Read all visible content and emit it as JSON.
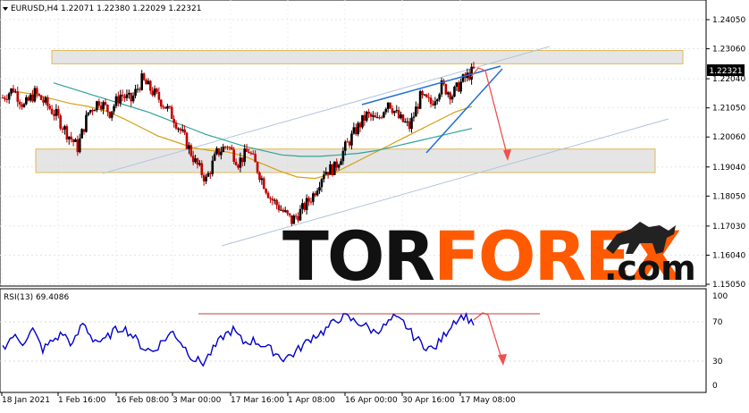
{
  "header": {
    "symbol_label": "EURUSD,H4",
    "ohlc": "1.22071 1.22380 1.22029 1.22321"
  },
  "rsi_header": {
    "label": "RSI(13) 69.4086"
  },
  "watermark": {
    "part1": "TOR",
    "part2": "FOREX",
    "part3": ".com"
  },
  "colors": {
    "background": "#ffffff",
    "candle_up": "#000000",
    "candle_down": "#c00000",
    "ma_fast": "#d4a017",
    "ma_slow": "#2ea39b",
    "channel": "#b0c4de",
    "wedge": "#1e6fd9",
    "zone_fill": "#dcdcdc",
    "zone_border": "#e0b85a",
    "forecast_arrow": "#f05050",
    "rsi_line": "#0000cc",
    "rsi_level_line": "#c04040",
    "watermark_dark": "#111111",
    "watermark_accent": "#ff5a00"
  },
  "chart_data": [
    {
      "type": "candlestick",
      "title": "EURUSD,H4",
      "y_ticks": [
        "1.24050",
        "1.23060",
        "1.22040",
        "1.21050",
        "1.20060",
        "1.19040",
        "1.18050",
        "1.17030",
        "1.16040",
        "1.15050"
      ],
      "current_price_label": "1.22321",
      "ylim": [
        1.148,
        1.246
      ],
      "x_ticks": [
        "18 Jan 2021",
        "1 Feb 16:00",
        "16 Feb 08:00",
        "3 Mar 00:00",
        "17 Mar 16:00",
        "1 Apr 08:00",
        "16 Apr 00:00",
        "30 Apr 16:00",
        "17 May 08:00"
      ],
      "approximate_close_path": [
        1.214,
        1.217,
        1.211,
        1.2155,
        1.212,
        1.208,
        1.202,
        1.197,
        1.209,
        1.213,
        1.209,
        1.215,
        1.213,
        1.22,
        1.216,
        1.212,
        1.207,
        1.2,
        1.192,
        1.186,
        1.195,
        1.198,
        1.192,
        1.196,
        1.188,
        1.18,
        1.176,
        1.172,
        1.176,
        1.181,
        1.189,
        1.19,
        1.197,
        1.203,
        1.208,
        1.206,
        1.213,
        1.207,
        1.204,
        1.214,
        1.212,
        1.218,
        1.215,
        1.22,
        1.2232
      ],
      "zones": [
        {
          "from": 1.2255,
          "to": 1.23
        },
        {
          "from": 1.1885,
          "to": 1.1965
        }
      ],
      "moving_averages": [
        {
          "role": "fast",
          "path": [
            1.216,
            1.215,
            1.2135,
            1.212,
            1.211,
            1.2095,
            1.207,
            1.204,
            1.201,
            1.199,
            1.197,
            1.196,
            1.1955,
            1.194,
            1.1915,
            1.189,
            1.187,
            1.1865,
            1.188,
            1.191,
            1.194,
            1.197,
            1.2,
            1.203,
            1.206,
            1.209,
            1.211
          ]
        },
        {
          "role": "slow",
          "path": [
            1.219,
            1.217,
            1.215,
            1.213,
            1.211,
            1.209,
            1.2065,
            1.204,
            1.2015,
            1.1995,
            1.1975,
            1.196,
            1.1945,
            1.194,
            1.194,
            1.1945,
            1.195,
            1.196,
            1.1975,
            1.199,
            1.2005,
            1.202,
            1.2035
          ]
        }
      ]
    },
    {
      "type": "line",
      "title": "RSI(13) 69.4086",
      "y_ticks": [
        "100",
        "70",
        "30",
        "0"
      ],
      "ylim": [
        0,
        100
      ],
      "level_line": 78,
      "approximate_path": [
        42,
        55,
        48,
        62,
        40,
        50,
        58,
        45,
        70,
        52,
        48,
        60,
        65,
        55,
        42,
        38,
        50,
        60,
        45,
        30,
        25,
        40,
        55,
        62,
        48,
        50,
        45,
        38,
        30,
        35,
        45,
        55,
        60,
        70,
        78,
        72,
        68,
        60,
        65,
        75,
        70,
        55,
        45,
        40,
        55,
        72,
        78,
        70
      ]
    }
  ]
}
